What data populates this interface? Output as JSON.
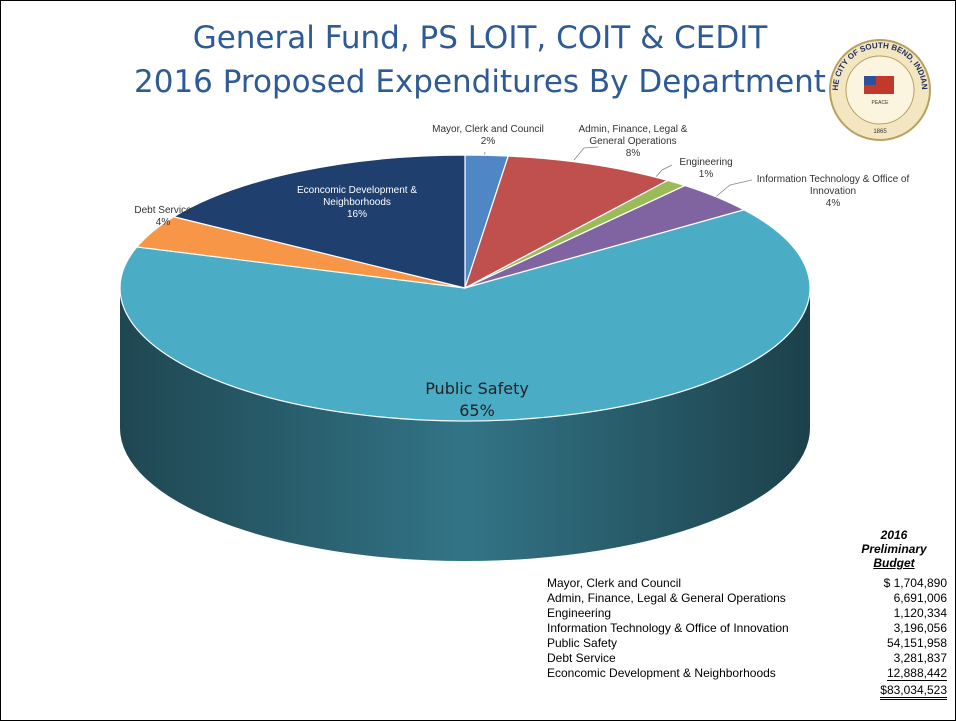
{
  "chart_data": {
    "type": "pie",
    "title": [
      "General Fund, PS LOIT, COIT & CEDIT",
      "2016 Proposed Expenditures By Department"
    ],
    "categories": [
      "Mayor, Clerk and Council",
      "Admin, Finance, Legal & General Operations",
      "Engineering",
      "Information Technology & Office of Innovation",
      "Public Safety",
      "Debt Service",
      "Econcomic Development & Neighborhoods"
    ],
    "values": [
      2,
      8,
      1,
      4,
      65,
      4,
      16
    ],
    "value_labels": [
      "2%",
      "8%",
      "1%",
      "4%",
      "65%",
      "4%",
      "16%"
    ],
    "colors": [
      "#4f86c6",
      "#c0504d",
      "#9bbb59",
      "#8064a2",
      "#4bacc6",
      "#f79646",
      "#1f3f6e"
    ]
  },
  "seal": {
    "text": "THE CITY OF SOUTH BEND, INDIANA",
    "motto": "PEACE",
    "year": "1865"
  },
  "table": {
    "header": [
      "2016",
      "Preliminary",
      "Budget"
    ],
    "rows": [
      [
        "Mayor, Clerk and Council",
        "$ 1,704,890"
      ],
      [
        "Admin, Finance, Legal & General Operations",
        "6,691,006"
      ],
      [
        "Engineering",
        "1,120,334"
      ],
      [
        "Information Technology & Office of Innovation",
        "3,196,056"
      ],
      [
        "Public Safety",
        "54,151,958"
      ],
      [
        "Debt Service",
        "3,281,837"
      ],
      [
        "Econcomic Development & Neighborhoods",
        "12,888,442"
      ]
    ],
    "total": "$83,034,523"
  }
}
